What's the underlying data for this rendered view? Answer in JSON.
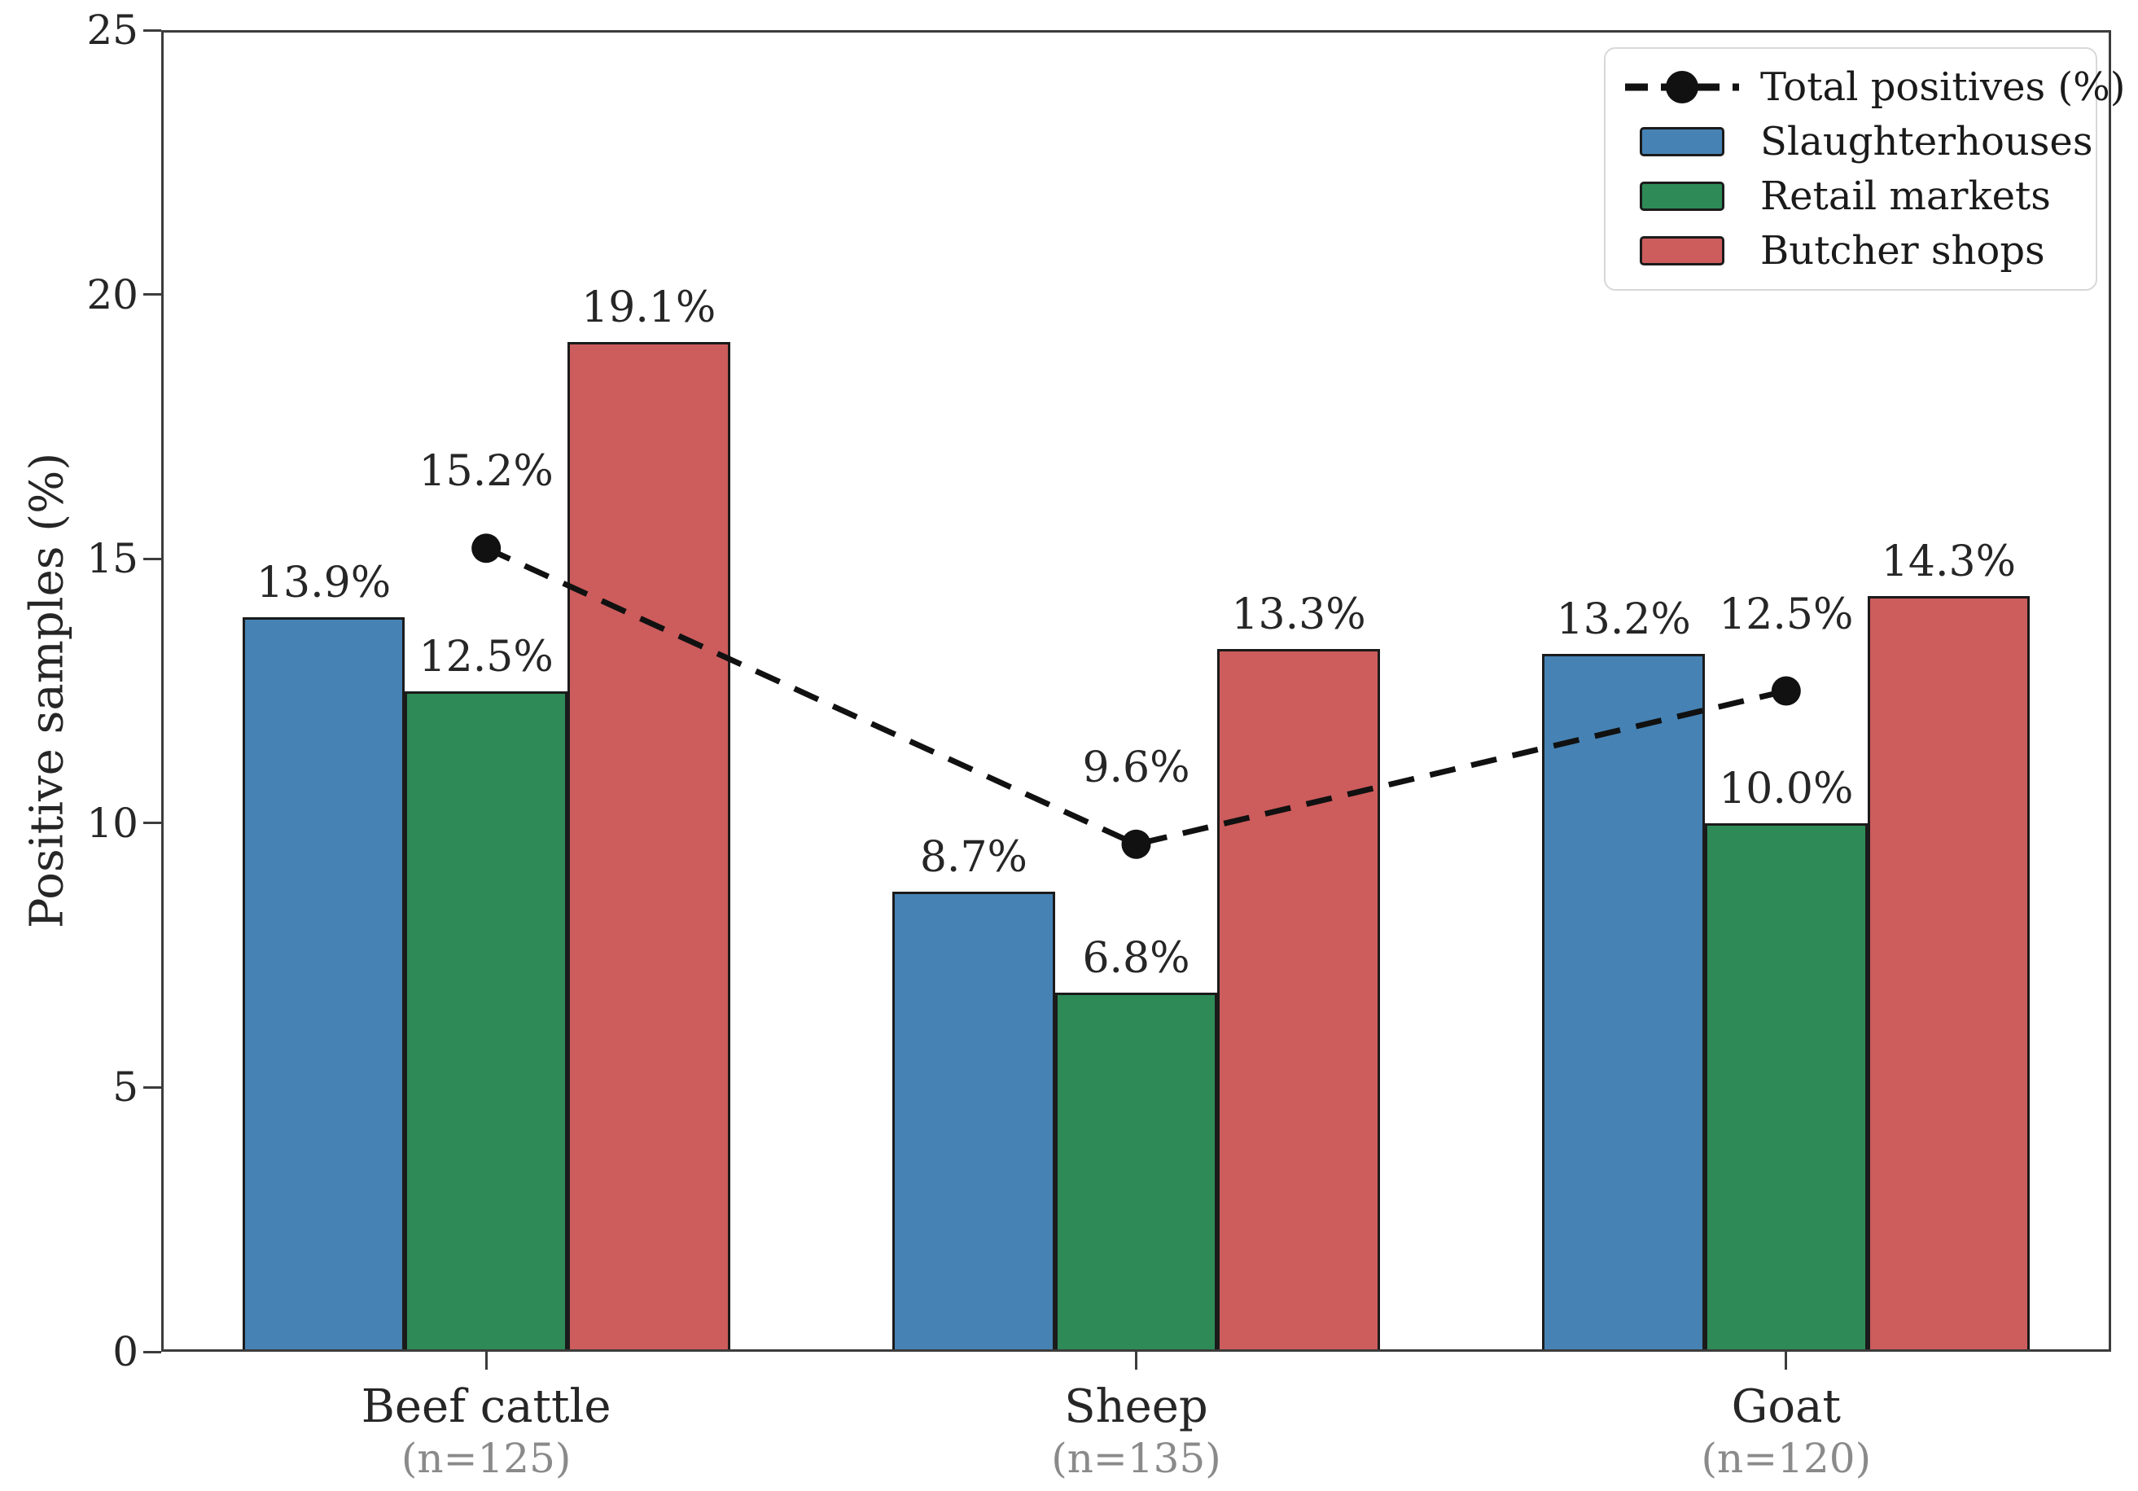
{
  "chart_data": {
    "type": "bar",
    "title": "",
    "xlabel": "",
    "ylabel": "Positive samples (%)",
    "ylim": [
      0,
      25
    ],
    "yticks": [
      "0",
      "5",
      "10",
      "15",
      "20",
      "25"
    ],
    "grid": false,
    "legend_position": "upper right",
    "categories": [
      {
        "label": "Beef cattle",
        "sublabel": "(n=125)"
      },
      {
        "label": "Sheep",
        "sublabel": "(n=135)"
      },
      {
        "label": "Goat",
        "sublabel": "(n=120)"
      }
    ],
    "series": [
      {
        "name": "Slaughterhouses",
        "color": "#4682B4",
        "values": [
          13.9,
          8.7,
          13.2
        ],
        "labels": [
          "13.9%",
          "8.7%",
          "13.2%"
        ]
      },
      {
        "name": "Retail markets",
        "color": "#2E8B57",
        "values": [
          12.5,
          6.8,
          10.0
        ],
        "labels": [
          "12.5%",
          "6.8%",
          "10.0%"
        ]
      },
      {
        "name": "Butcher shops",
        "color": "#CD5C5C",
        "values": [
          19.1,
          13.3,
          14.3
        ],
        "labels": [
          "19.1%",
          "13.3%",
          "14.3%"
        ]
      }
    ],
    "line_series": {
      "name": "Total positives (%)",
      "color": "#111111",
      "style": "dashed",
      "marker": "circle",
      "values": [
        15.2,
        9.6,
        12.5
      ],
      "labels": [
        "15.2%",
        "9.6%",
        "12.5%"
      ]
    },
    "legend": {
      "entries": [
        {
          "label": "Total positives (%)",
          "swatch": "line-marker",
          "color": "#111111"
        },
        {
          "label": "Slaughterhouses",
          "swatch": "patch",
          "color": "#4682B4"
        },
        {
          "label": "Retail markets",
          "swatch": "patch",
          "color": "#2E8B57"
        },
        {
          "label": "Butcher shops",
          "swatch": "patch",
          "color": "#CD5C5C"
        }
      ]
    }
  }
}
